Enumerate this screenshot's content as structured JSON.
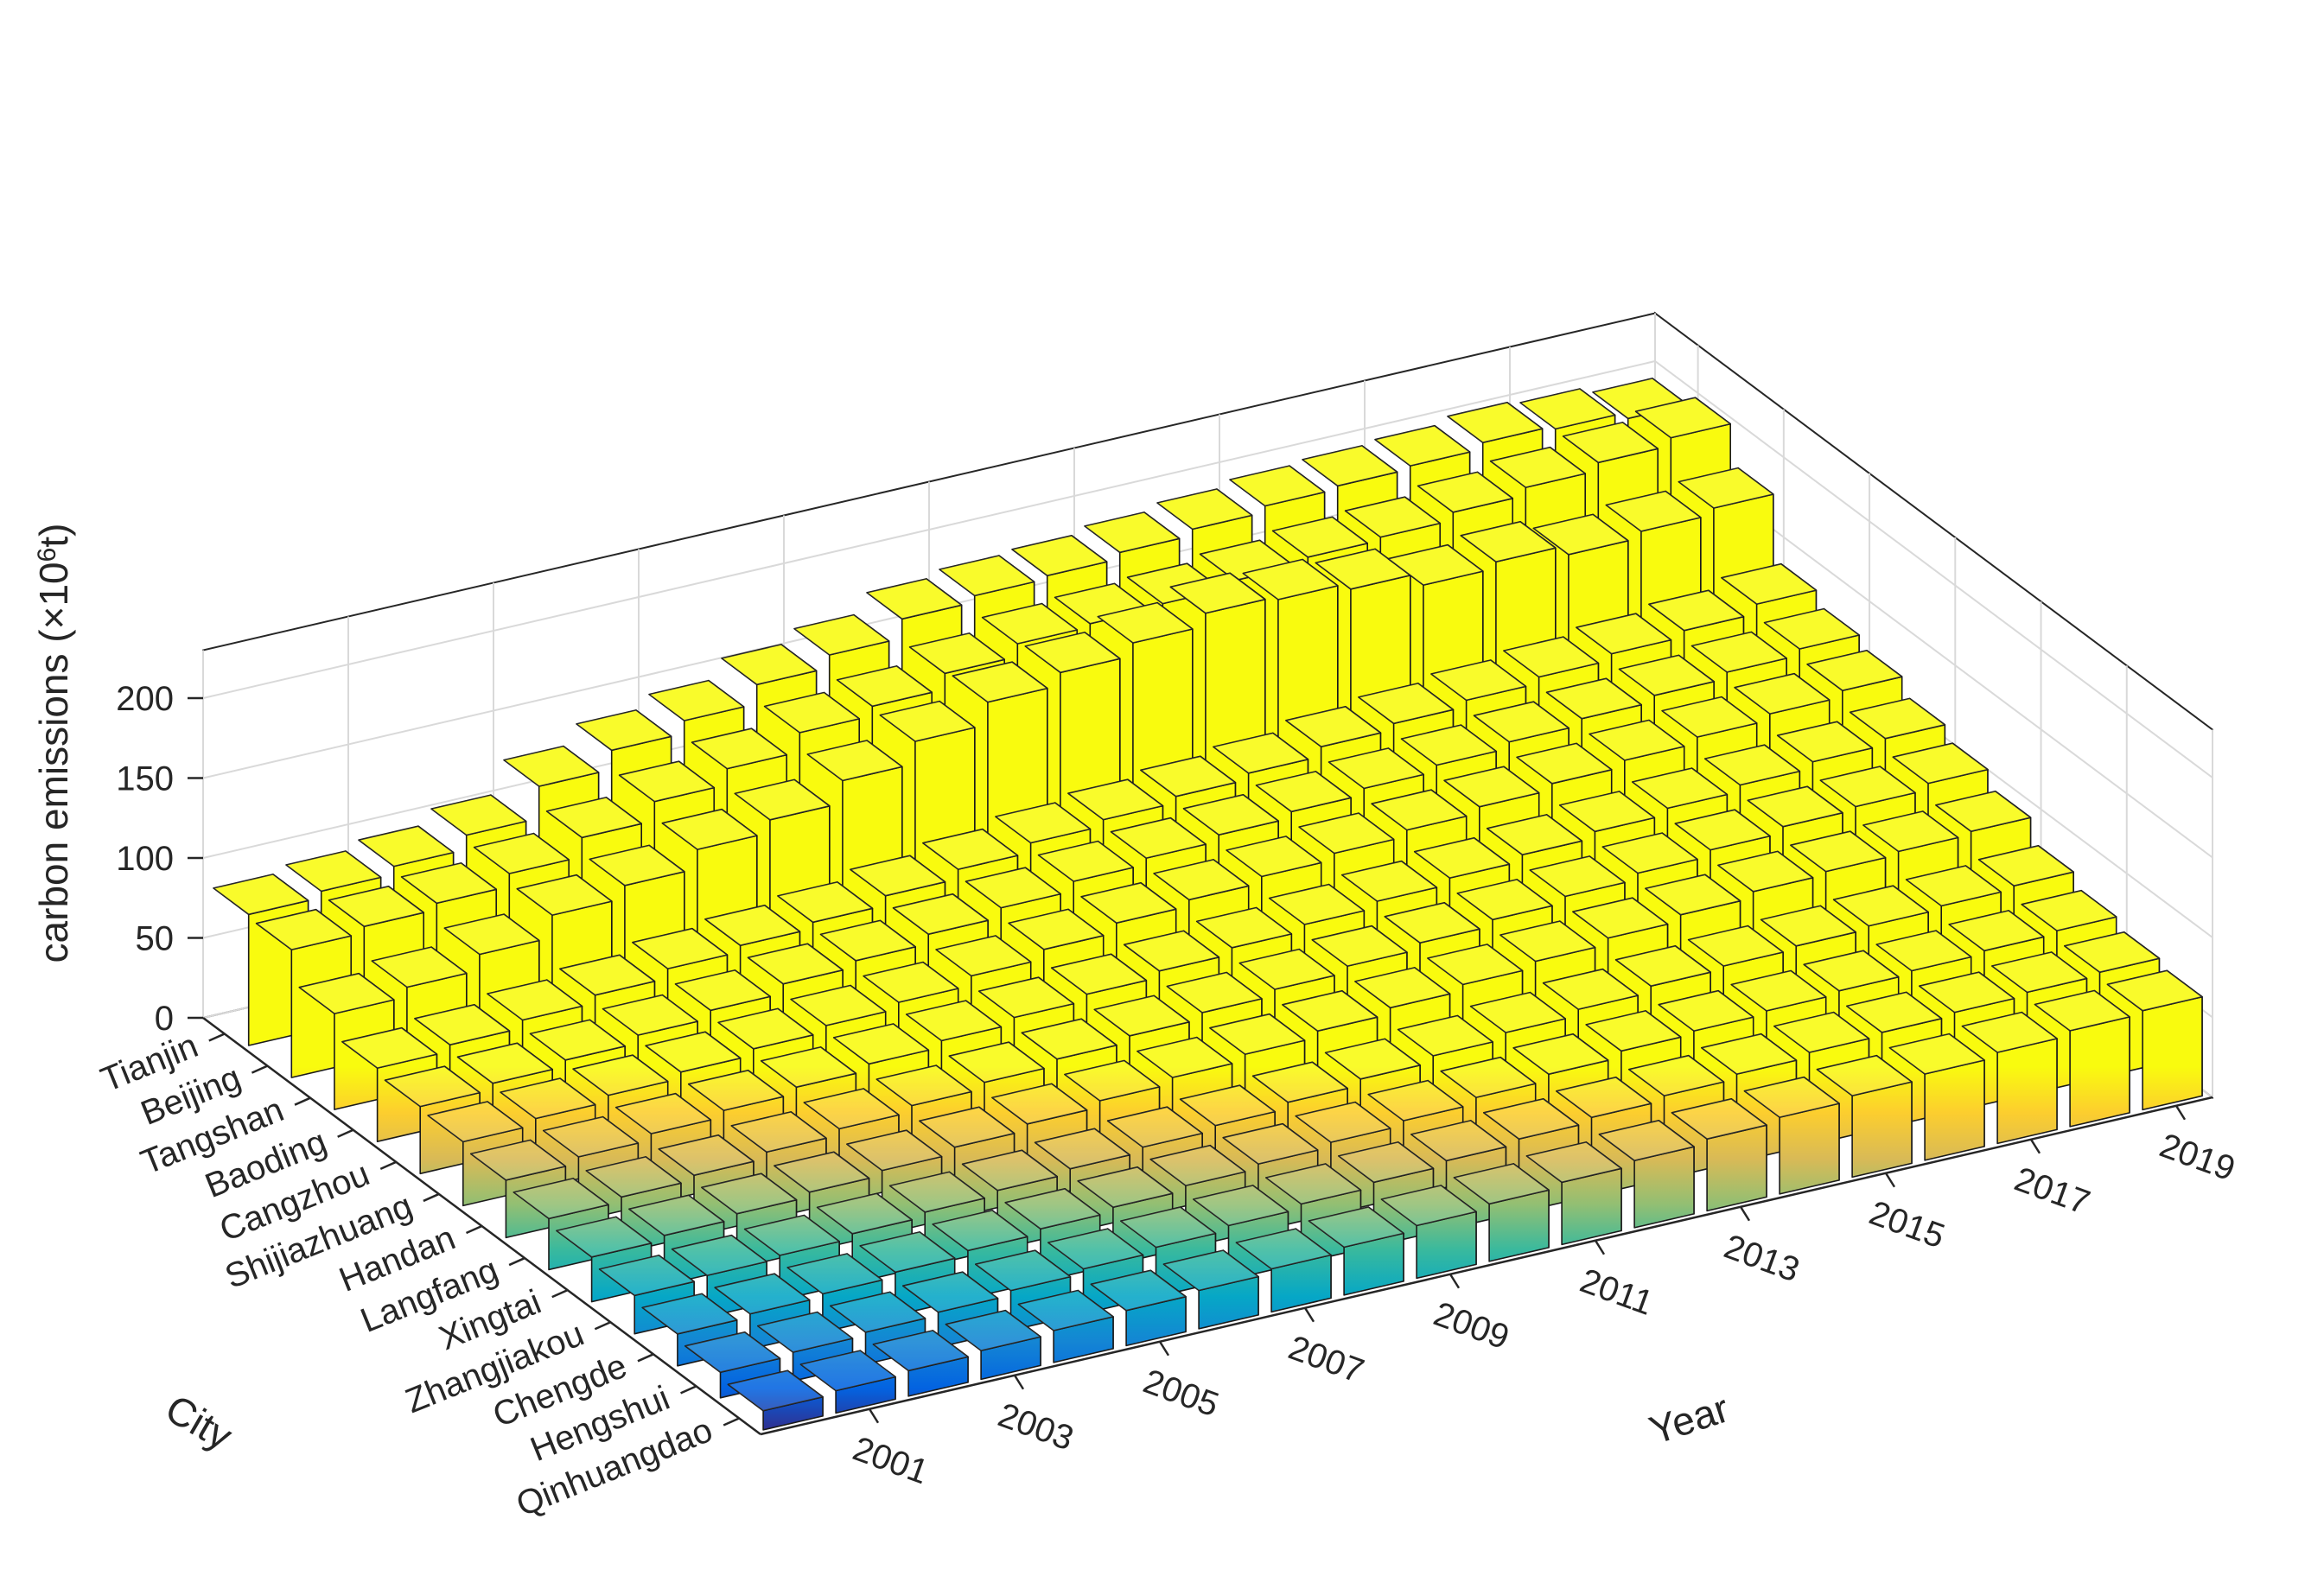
{
  "chart_data": {
    "type": "bar3d",
    "title": "",
    "xlabel": "Year",
    "ylabel": "City",
    "zlabel": "carbon emissions (×10⁶t)",
    "zlabel_parts": {
      "prefix": "carbon emissions (×10",
      "sup": "6",
      "suffix": "t)"
    },
    "zlim": [
      0,
      230
    ],
    "z_ticks": [
      0,
      50,
      100,
      150,
      200
    ],
    "year_tick_labels": [
      "2001",
      "2003",
      "2005",
      "2007",
      "2009",
      "2011",
      "2013",
      "2015",
      "2017",
      "2019"
    ],
    "years": [
      2000,
      2001,
      2002,
      2003,
      2004,
      2005,
      2006,
      2007,
      2008,
      2009,
      2010,
      2011,
      2012,
      2013,
      2014,
      2015,
      2016,
      2017,
      2018,
      2019
    ],
    "cities": [
      "Tianjin",
      "Beijing",
      "Tangshan",
      "Baoding",
      "Cangzhou",
      "Shijiazhuang",
      "Handan",
      "Langfang",
      "Xingtai",
      "Zhangjiakou",
      "Chengde",
      "Hengshui",
      "Qinhuangdao"
    ],
    "values": [
      [
        82,
        86,
        91,
        100,
        120,
        132,
        140,
        152,
        160,
        172,
        176,
        178,
        182,
        186,
        190,
        192,
        194,
        198,
        196,
        192
      ],
      [
        80,
        84,
        88,
        96,
        108,
        120,
        130,
        142,
        148,
        158,
        166,
        168,
        170,
        174,
        178,
        180,
        185,
        190,
        195,
        200
      ],
      [
        60,
        66,
        76,
        90,
        98,
        110,
        118,
        132,
        146,
        160,
        168,
        176,
        184,
        182,
        178,
        170,
        174,
        168,
        172,
        176
      ],
      [
        46,
        50,
        55,
        60,
        66,
        70,
        74,
        80,
        86,
        92,
        96,
        100,
        104,
        110,
        114,
        118,
        122,
        126,
        130,
        136
      ],
      [
        42,
        46,
        50,
        55,
        60,
        66,
        70,
        76,
        82,
        88,
        92,
        96,
        100,
        104,
        108,
        112,
        116,
        120,
        124,
        128
      ],
      [
        40,
        44,
        48,
        52,
        56,
        60,
        64,
        70,
        76,
        82,
        86,
        90,
        94,
        98,
        102,
        106,
        110,
        114,
        118,
        122
      ],
      [
        36,
        40,
        44,
        48,
        52,
        56,
        60,
        64,
        68,
        72,
        76,
        80,
        84,
        88,
        92,
        96,
        100,
        104,
        108,
        112
      ],
      [
        32,
        35,
        38,
        42,
        46,
        50,
        54,
        58,
        62,
        66,
        70,
        74,
        78,
        82,
        86,
        90,
        94,
        98,
        100,
        104
      ],
      [
        28,
        31,
        34,
        37,
        40,
        44,
        48,
        52,
        56,
        60,
        64,
        68,
        72,
        76,
        80,
        84,
        88,
        90,
        92,
        94
      ],
      [
        24,
        26,
        28,
        31,
        34,
        37,
        40,
        43,
        46,
        50,
        54,
        58,
        62,
        66,
        70,
        72,
        74,
        76,
        78,
        80
      ],
      [
        20,
        22,
        24,
        27,
        30,
        33,
        36,
        39,
        42,
        45,
        48,
        52,
        56,
        60,
        62,
        64,
        66,
        68,
        70,
        72
      ],
      [
        16,
        18,
        20,
        22,
        25,
        28,
        31,
        34,
        37,
        40,
        43,
        46,
        49,
        52,
        55,
        58,
        60,
        62,
        64,
        66
      ],
      [
        12,
        14,
        16,
        18,
        20,
        22,
        24,
        27,
        30,
        33,
        36,
        39,
        42,
        45,
        48,
        51,
        54,
        57,
        60,
        62
      ]
    ],
    "colormap": [
      "#352a87",
      "#0363e1",
      "#1485d4",
      "#06a7c6",
      "#38b99e",
      "#92bf73",
      "#d9ba56",
      "#fcce2e",
      "#f9fb0e"
    ]
  }
}
